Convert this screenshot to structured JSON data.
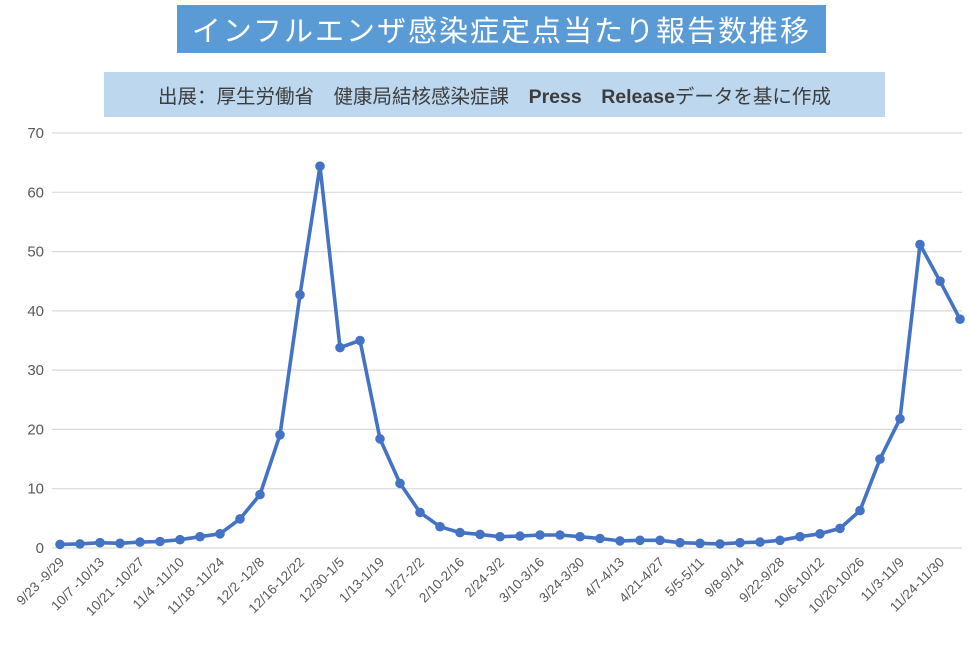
{
  "page": {
    "title": "インフルエンザ感染症定点当たり報告数推移",
    "source_note": {
      "prefix": "出展：厚生労働省　健康局結核感染症課　",
      "emphasis": "Press　Release",
      "suffix": "データを基に作成"
    }
  },
  "colors": {
    "title_bg": "#5B9BD5",
    "title_text": "#FFFFFF",
    "source_bg": "#BDD7EE",
    "line": "#4472C4",
    "gridline": "#D9D9D9",
    "axis_text": "#595959"
  },
  "chart_data": {
    "type": "line",
    "title": "インフルエンザ感染症定点当たり報告数推移",
    "xlabel": "",
    "ylabel": "",
    "ylim": [
      0,
      70
    ],
    "y_ticks": [
      0,
      10,
      20,
      30,
      40,
      50,
      60,
      70
    ],
    "grid": true,
    "legend": false,
    "marker": "circle",
    "x_tick_every": 2,
    "x_tick_labels": [
      "9/23 -9/29",
      "10/7 -10/13",
      "10/21 -10/27",
      "11/4 -11/10",
      "11/18 -11/24",
      "12/2 -12/8",
      "12/16-12/22",
      "12/30-1/5",
      "1/13-1/19",
      "1/27-2/2",
      "2/10-2/16",
      "2/24-3/2",
      "3/10-3/16",
      "3/24-3/30",
      "4/7-4/13",
      "4/21-4/27",
      "5/5-5/11",
      "9/8-9/14",
      "9/22-9/28",
      "10/6-10/12",
      "10/20-10/26",
      "11/3-11/9",
      "11/24-11/30"
    ],
    "values": [
      0.6,
      0.7,
      0.9,
      0.8,
      1.0,
      1.1,
      1.4,
      1.9,
      2.4,
      4.9,
      9.0,
      19.1,
      42.7,
      64.4,
      33.8,
      35.0,
      18.4,
      10.9,
      6.0,
      3.6,
      2.6,
      2.3,
      1.9,
      2.0,
      2.2,
      2.2,
      1.9,
      1.6,
      1.2,
      1.3,
      1.3,
      0.9,
      0.8,
      0.7,
      0.9,
      1.0,
      1.3,
      1.9,
      2.4,
      3.3,
      6.3,
      15.0,
      21.8,
      51.2,
      45.0,
      38.6
    ]
  }
}
